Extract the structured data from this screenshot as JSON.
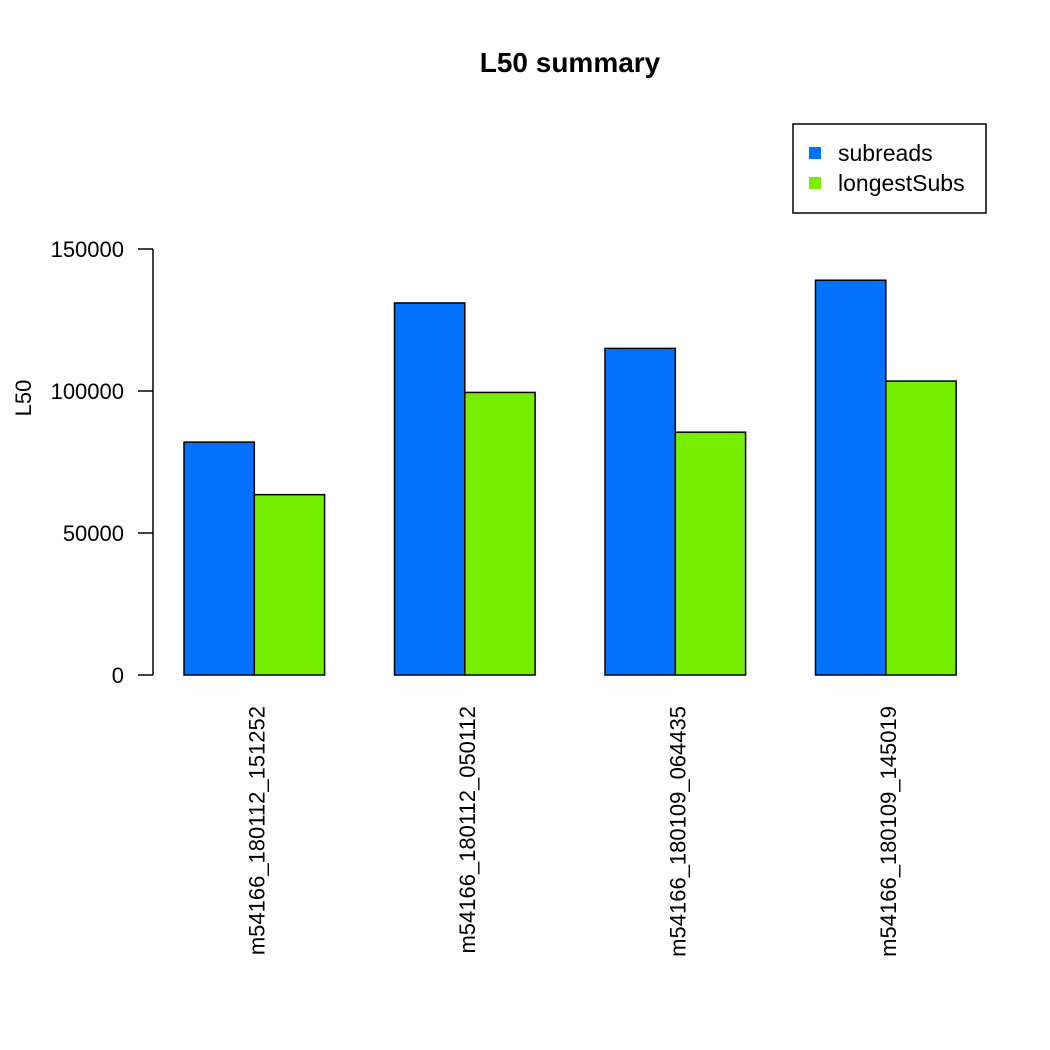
{
  "chart_data": {
    "type": "bar",
    "title": "L50 summary",
    "xlabel": "",
    "ylabel": "L50",
    "ylim": [
      0,
      150000
    ],
    "yticks": [
      0,
      50000,
      100000,
      150000
    ],
    "categories": [
      "m54166_180112_151252",
      "m54166_180112_050112",
      "m54166_180109_064435",
      "m54166_180109_145019"
    ],
    "series": [
      {
        "name": "subreads",
        "color": "#0373ff",
        "values": [
          82000,
          131000,
          115000,
          139000
        ]
      },
      {
        "name": "longestSubs",
        "color": "#76ee00",
        "values": [
          63500,
          99500,
          85500,
          103500
        ]
      }
    ],
    "legend": {
      "position": "top-right"
    },
    "grid": false
  }
}
